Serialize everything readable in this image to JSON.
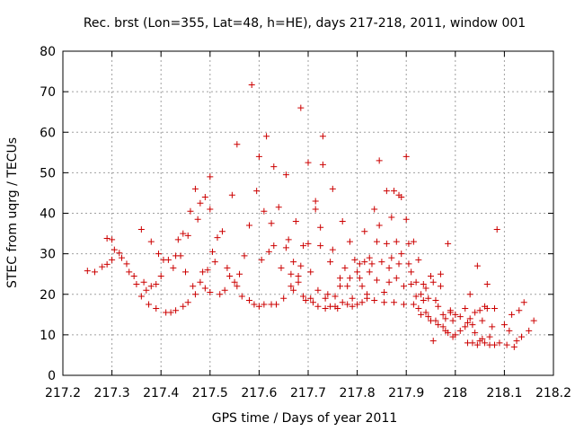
{
  "chart_data": {
    "type": "scatter",
    "title": "Rec. brst (Lon=355, Lat=48, h=HE), days 217-218, 2011, window 001",
    "xlabel": "GPS time / Days of year 2011",
    "ylabel": "STEC from uqrg / TECUs",
    "xlim": [
      217.2,
      218.2
    ],
    "ylim": [
      0,
      80
    ],
    "xticks": [
      217.2,
      217.3,
      217.4,
      217.5,
      217.6,
      217.7,
      217.8,
      217.9,
      218,
      218.1,
      218.2
    ],
    "xtick_labels": [
      "217.2",
      "217.3",
      "217.4",
      "217.5",
      "217.6",
      "217.7",
      "217.8",
      "217.9",
      "218",
      "218.1",
      "218.2"
    ],
    "yticks": [
      0,
      10,
      20,
      30,
      40,
      50,
      60,
      70,
      80
    ],
    "ytick_labels": [
      "0",
      "10",
      "20",
      "30",
      "40",
      "50",
      "60",
      "70",
      "80"
    ],
    "grid": true,
    "marker": "+",
    "color": "#cc0000",
    "series": [
      {
        "name": "STEC",
        "points": [
          [
            217.25,
            25.8
          ],
          [
            217.265,
            25.5
          ],
          [
            217.28,
            26.8
          ],
          [
            217.29,
            27.4
          ],
          [
            217.29,
            33.8
          ],
          [
            217.3,
            28.5
          ],
          [
            217.3,
            33.5
          ],
          [
            217.305,
            31.0
          ],
          [
            217.315,
            30.2
          ],
          [
            217.32,
            29.0
          ],
          [
            217.33,
            27.5
          ],
          [
            217.335,
            25.5
          ],
          [
            217.345,
            24.5
          ],
          [
            217.35,
            22.5
          ],
          [
            217.36,
            19.5
          ],
          [
            217.36,
            36.0
          ],
          [
            217.365,
            23.0
          ],
          [
            217.37,
            21.0
          ],
          [
            217.375,
            17.5
          ],
          [
            217.38,
            22.0
          ],
          [
            217.38,
            33.0
          ],
          [
            217.39,
            16.5
          ],
          [
            217.39,
            22.5
          ],
          [
            217.395,
            30.0
          ],
          [
            217.4,
            24.5
          ],
          [
            217.405,
            28.5
          ],
          [
            217.41,
            15.5
          ],
          [
            217.415,
            28.5
          ],
          [
            217.42,
            15.5
          ],
          [
            217.425,
            26.5
          ],
          [
            217.43,
            16.0
          ],
          [
            217.43,
            29.5
          ],
          [
            217.435,
            33.5
          ],
          [
            217.44,
            29.5
          ],
          [
            217.445,
            17.0
          ],
          [
            217.445,
            35.0
          ],
          [
            217.45,
            25.5
          ],
          [
            217.455,
            18.0
          ],
          [
            217.455,
            34.5
          ],
          [
            217.46,
            40.5
          ],
          [
            217.465,
            22.0
          ],
          [
            217.47,
            20.0
          ],
          [
            217.47,
            46.0
          ],
          [
            217.475,
            38.5
          ],
          [
            217.48,
            23.0
          ],
          [
            217.48,
            42.5
          ],
          [
            217.485,
            25.5
          ],
          [
            217.49,
            21.5
          ],
          [
            217.49,
            44.0
          ],
          [
            217.495,
            26.0
          ],
          [
            217.5,
            20.5
          ],
          [
            217.5,
            41.0
          ],
          [
            217.5,
            49.0
          ],
          [
            217.505,
            30.5
          ],
          [
            217.51,
            28.0
          ],
          [
            217.515,
            34.0
          ],
          [
            217.52,
            20.0
          ],
          [
            217.525,
            35.5
          ],
          [
            217.53,
            21.0
          ],
          [
            217.535,
            26.5
          ],
          [
            217.54,
            24.5
          ],
          [
            217.545,
            44.5
          ],
          [
            217.55,
            23.0
          ],
          [
            217.555,
            22.0
          ],
          [
            217.555,
            57.0
          ],
          [
            217.56,
            25.0
          ],
          [
            217.565,
            19.5
          ],
          [
            217.57,
            29.5
          ],
          [
            217.58,
            18.5
          ],
          [
            217.58,
            37.0
          ],
          [
            217.585,
            71.7
          ],
          [
            217.59,
            17.5
          ],
          [
            217.595,
            45.5
          ],
          [
            217.6,
            17.0
          ],
          [
            217.6,
            54.0
          ],
          [
            217.605,
            28.5
          ],
          [
            217.61,
            17.5
          ],
          [
            217.61,
            40.5
          ],
          [
            217.615,
            59.0
          ],
          [
            217.62,
            30.5
          ],
          [
            217.625,
            17.5
          ],
          [
            217.625,
            37.5
          ],
          [
            217.63,
            32.0
          ],
          [
            217.63,
            51.5
          ],
          [
            217.635,
            17.5
          ],
          [
            217.64,
            41.5
          ],
          [
            217.645,
            26.5
          ],
          [
            217.65,
            19.0
          ],
          [
            217.655,
            31.5
          ],
          [
            217.655,
            49.5
          ],
          [
            217.66,
            33.5
          ],
          [
            217.665,
            25.0
          ],
          [
            217.665,
            22.0
          ],
          [
            217.67,
            28.0
          ],
          [
            217.67,
            21.0
          ],
          [
            217.675,
            38.0
          ],
          [
            217.68,
            24.5
          ],
          [
            217.68,
            23.0
          ],
          [
            217.685,
            27.0
          ],
          [
            217.685,
            66.0
          ],
          [
            217.69,
            19.5
          ],
          [
            217.69,
            32.0
          ],
          [
            217.695,
            18.5
          ],
          [
            217.7,
            52.5
          ],
          [
            217.7,
            32.5
          ],
          [
            217.705,
            25.5
          ],
          [
            217.705,
            19.0
          ],
          [
            217.71,
            18.0
          ],
          [
            217.715,
            41.0
          ],
          [
            217.715,
            43.0
          ],
          [
            217.72,
            17.0
          ],
          [
            217.72,
            21.0
          ],
          [
            217.725,
            36.5
          ],
          [
            217.725,
            32.0
          ],
          [
            217.73,
            52.0
          ],
          [
            217.73,
            59.0
          ],
          [
            217.735,
            16.5
          ],
          [
            217.735,
            19.0
          ],
          [
            217.74,
            20.0
          ],
          [
            217.745,
            28.0
          ],
          [
            217.745,
            17.0
          ],
          [
            217.75,
            46.0
          ],
          [
            217.75,
            31.0
          ],
          [
            217.755,
            19.5
          ],
          [
            217.755,
            17.0
          ],
          [
            217.76,
            16.5
          ],
          [
            217.765,
            24.0
          ],
          [
            217.765,
            22.0
          ],
          [
            217.77,
            38.0
          ],
          [
            217.77,
            18.0
          ],
          [
            217.775,
            26.5
          ],
          [
            217.78,
            22.0
          ],
          [
            217.78,
            17.5
          ],
          [
            217.785,
            33.0
          ],
          [
            217.785,
            24.0
          ],
          [
            217.79,
            19.0
          ],
          [
            217.79,
            17.0
          ],
          [
            217.795,
            28.5
          ],
          [
            217.8,
            25.5
          ],
          [
            217.8,
            17.5
          ],
          [
            217.805,
            27.5
          ],
          [
            217.805,
            24.0
          ],
          [
            217.81,
            22.0
          ],
          [
            217.81,
            18.0
          ],
          [
            217.815,
            35.5
          ],
          [
            217.815,
            28.0
          ],
          [
            217.82,
            20.0
          ],
          [
            217.82,
            19.0
          ],
          [
            217.825,
            29.0
          ],
          [
            217.825,
            25.5
          ],
          [
            217.83,
            27.5
          ],
          [
            217.835,
            41.0
          ],
          [
            217.835,
            18.5
          ],
          [
            217.84,
            33.0
          ],
          [
            217.84,
            23.5
          ],
          [
            217.845,
            53.0
          ],
          [
            217.845,
            37.0
          ],
          [
            217.85,
            28.0
          ],
          [
            217.855,
            20.5
          ],
          [
            217.855,
            18.0
          ],
          [
            217.86,
            45.5
          ],
          [
            217.86,
            32.5
          ],
          [
            217.865,
            23.0
          ],
          [
            217.865,
            26.5
          ],
          [
            217.87,
            39.0
          ],
          [
            217.87,
            29.0
          ],
          [
            217.875,
            45.5
          ],
          [
            217.875,
            18.0
          ],
          [
            217.88,
            33.0
          ],
          [
            217.88,
            24.0
          ],
          [
            217.885,
            27.5
          ],
          [
            217.885,
            44.5
          ],
          [
            217.89,
            44.0
          ],
          [
            217.89,
            30.0
          ],
          [
            217.895,
            22.0
          ],
          [
            217.895,
            17.5
          ],
          [
            217.9,
            54.0
          ],
          [
            217.9,
            38.5
          ],
          [
            217.905,
            32.5
          ],
          [
            217.905,
            27.5
          ],
          [
            217.91,
            25.5
          ],
          [
            217.91,
            22.5
          ],
          [
            217.915,
            17.5
          ],
          [
            217.915,
            33.0
          ],
          [
            217.92,
            23.0
          ],
          [
            217.92,
            19.5
          ],
          [
            217.925,
            16.5
          ],
          [
            217.925,
            28.5
          ],
          [
            217.93,
            20.0
          ],
          [
            217.93,
            15.0
          ],
          [
            217.935,
            22.5
          ],
          [
            217.935,
            18.5
          ],
          [
            217.94,
            21.5
          ],
          [
            217.94,
            15.5
          ],
          [
            217.945,
            19.0
          ],
          [
            217.945,
            14.5
          ],
          [
            217.95,
            24.5
          ],
          [
            217.95,
            13.5
          ],
          [
            217.955,
            23.0
          ],
          [
            217.955,
            8.5
          ],
          [
            217.96,
            18.5
          ],
          [
            217.96,
            13.5
          ],
          [
            217.965,
            17.0
          ],
          [
            217.965,
            12.5
          ],
          [
            217.97,
            25.0
          ],
          [
            217.97,
            22.0
          ],
          [
            217.975,
            15.0
          ],
          [
            217.975,
            12.0
          ],
          [
            217.98,
            14.0
          ],
          [
            217.98,
            11.0
          ],
          [
            217.985,
            32.5
          ],
          [
            217.985,
            10.5
          ],
          [
            217.99,
            15.5
          ],
          [
            217.99,
            16.0
          ],
          [
            217.995,
            13.5
          ],
          [
            217.995,
            9.5
          ],
          [
            218.0,
            15.0
          ],
          [
            218.0,
            10.0
          ],
          [
            218.01,
            14.5
          ],
          [
            218.01,
            11.0
          ],
          [
            218.02,
            16.5
          ],
          [
            218.02,
            12.0
          ],
          [
            218.025,
            13.0
          ],
          [
            218.025,
            8.0
          ],
          [
            218.03,
            14.0
          ],
          [
            218.03,
            20.0
          ],
          [
            218.035,
            12.5
          ],
          [
            218.035,
            8.0
          ],
          [
            218.04,
            15.5
          ],
          [
            218.04,
            10.5
          ],
          [
            218.045,
            27.0
          ],
          [
            218.045,
            7.5
          ],
          [
            218.05,
            16.0
          ],
          [
            218.05,
            8.5
          ],
          [
            218.055,
            13.5
          ],
          [
            218.055,
            9.0
          ],
          [
            218.06,
            17.0
          ],
          [
            218.06,
            8.0
          ],
          [
            218.065,
            16.5
          ],
          [
            218.065,
            22.5
          ],
          [
            218.07,
            7.5
          ],
          [
            218.07,
            9.5
          ],
          [
            218.075,
            12.0
          ],
          [
            218.08,
            16.5
          ],
          [
            218.08,
            7.5
          ],
          [
            218.085,
            36.0
          ],
          [
            218.09,
            8.0
          ],
          [
            218.1,
            12.5
          ],
          [
            218.105,
            7.5
          ],
          [
            218.11,
            11.0
          ],
          [
            218.115,
            15.0
          ],
          [
            218.12,
            7.0
          ],
          [
            218.125,
            8.5
          ],
          [
            218.13,
            16.0
          ],
          [
            218.135,
            9.5
          ],
          [
            218.14,
            18.0
          ],
          [
            218.15,
            11.0
          ],
          [
            218.16,
            13.5
          ]
        ]
      }
    ]
  }
}
